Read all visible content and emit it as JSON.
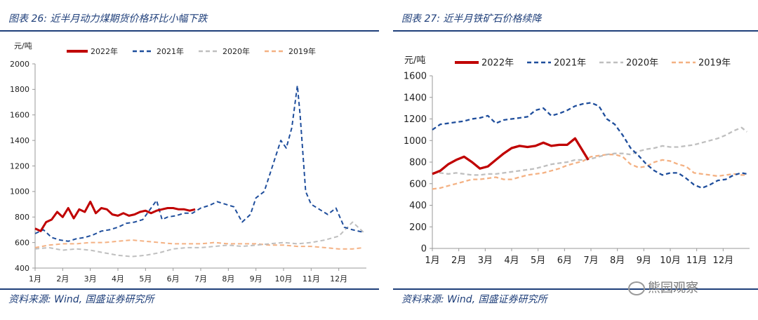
{
  "left": {
    "title": "图表 26:  近半月动力煤期货价格环比小幅下跌",
    "source": "资料来源:  Wind, 国盛证券研究所"
  },
  "right": {
    "title": "图表 27:  近半月铁矿石价格续降",
    "source": "资料来源:  Wind, 国盛证券研究所",
    "watermark": "熊园观察"
  },
  "colors": {
    "2022年": "#c00000",
    "2021年": "#1f4e9c",
    "2020年": "#bfbfbf",
    "2019年": "#f4b183",
    "accent": "#1f3f7a"
  },
  "chart_data": [
    {
      "type": "line",
      "ylabel": "元/吨",
      "ylim": [
        400,
        2000
      ],
      "yticks": [
        400,
        600,
        800,
        1000,
        1200,
        1400,
        1600,
        1800,
        2000
      ],
      "xticks": [
        "1月",
        "2月",
        "3月",
        "4月",
        "5月",
        "6月",
        "7月",
        "8月",
        "9月",
        "10月",
        "11月",
        "12月"
      ],
      "xlim": [
        1,
        13
      ],
      "legend_position": "top",
      "series": [
        {
          "name": "2022年",
          "style": "solid",
          "x": [
            1,
            1.2,
            1.4,
            1.6,
            1.8,
            2,
            2.2,
            2.4,
            2.6,
            2.8,
            3,
            3.2,
            3.4,
            3.6,
            3.8,
            4,
            4.2,
            4.4,
            4.6,
            4.8,
            5,
            5.2,
            5.4,
            5.6,
            5.8,
            6,
            6.2,
            6.4,
            6.6,
            6.8
          ],
          "y": [
            710,
            690,
            760,
            780,
            840,
            800,
            870,
            790,
            860,
            840,
            920,
            830,
            870,
            860,
            820,
            810,
            830,
            810,
            820,
            840,
            850,
            830,
            850,
            860,
            870,
            870,
            860,
            860,
            850,
            860
          ]
        },
        {
          "name": "2021年",
          "style": "dashed",
          "x": [
            1,
            1.3,
            1.6,
            1.9,
            2.2,
            2.5,
            2.8,
            3.1,
            3.4,
            3.7,
            4,
            4.3,
            4.6,
            4.9,
            5.2,
            5.4,
            5.6,
            5.8,
            6.1,
            6.4,
            6.7,
            7,
            7.3,
            7.6,
            7.9,
            8.2,
            8.5,
            8.8,
            9,
            9.3,
            9.6,
            9.9,
            10.1,
            10.3,
            10.5,
            10.6,
            10.8,
            11,
            11.3,
            11.6,
            11.9,
            12.2,
            12.5,
            12.9
          ],
          "y": [
            670,
            700,
            640,
            620,
            610,
            630,
            640,
            660,
            690,
            700,
            720,
            750,
            760,
            780,
            870,
            930,
            780,
            800,
            810,
            830,
            830,
            870,
            890,
            920,
            900,
            880,
            760,
            820,
            950,
            1000,
            1200,
            1400,
            1340,
            1500,
            1830,
            1600,
            1000,
            900,
            860,
            820,
            870,
            720,
            700,
            680
          ]
        },
        {
          "name": "2020年",
          "style": "dashed",
          "x": [
            1,
            1.5,
            2,
            2.5,
            3,
            3.5,
            4,
            4.5,
            5,
            5.5,
            6,
            6.5,
            7,
            7.5,
            8,
            8.5,
            9,
            9.5,
            10,
            10.5,
            11,
            11.5,
            12,
            12.5,
            12.9
          ],
          "y": [
            550,
            560,
            540,
            550,
            540,
            520,
            500,
            490,
            500,
            520,
            550,
            560,
            560,
            570,
            580,
            570,
            580,
            590,
            600,
            590,
            600,
            620,
            650,
            760,
            680
          ]
        },
        {
          "name": "2019年",
          "style": "dashed",
          "x": [
            1,
            1.5,
            2,
            2.5,
            3,
            3.5,
            4,
            4.5,
            5,
            5.5,
            6,
            6.5,
            7,
            7.5,
            8,
            8.5,
            9,
            9.5,
            10,
            10.5,
            11,
            11.5,
            12,
            12.5,
            12.9
          ],
          "y": [
            560,
            580,
            590,
            590,
            600,
            600,
            610,
            620,
            610,
            600,
            590,
            590,
            590,
            600,
            590,
            590,
            590,
            580,
            580,
            570,
            570,
            560,
            550,
            550,
            560
          ]
        }
      ]
    },
    {
      "type": "line",
      "ylabel": "元/吨",
      "ylim": [
        0,
        1600
      ],
      "yticks": [
        0,
        200,
        400,
        600,
        800,
        1000,
        1200,
        1400,
        1600
      ],
      "xticks": [
        "1月",
        "2月",
        "3月",
        "4月",
        "5月",
        "6月",
        "7月",
        "8月",
        "9月",
        "10月",
        "11月",
        "12月"
      ],
      "xlim": [
        1,
        13
      ],
      "legend_position": "top",
      "series": [
        {
          "name": "2022年",
          "style": "solid",
          "x": [
            1,
            1.3,
            1.6,
            1.9,
            2.2,
            2.5,
            2.8,
            3.1,
            3.4,
            3.7,
            4,
            4.3,
            4.6,
            4.9,
            5.2,
            5.5,
            5.8,
            6.1,
            6.4,
            6.7,
            6.9
          ],
          "y": [
            690,
            720,
            780,
            820,
            850,
            800,
            740,
            760,
            820,
            880,
            930,
            950,
            940,
            950,
            980,
            950,
            960,
            960,
            1020,
            900,
            820
          ]
        },
        {
          "name": "2021年",
          "style": "dashed",
          "x": [
            1,
            1.3,
            1.6,
            1.9,
            2.2,
            2.5,
            2.8,
            3.1,
            3.4,
            3.7,
            4,
            4.3,
            4.6,
            4.9,
            5.2,
            5.5,
            5.8,
            6.1,
            6.4,
            6.7,
            7,
            7.3,
            7.6,
            7.9,
            8.2,
            8.5,
            8.8,
            9.1,
            9.4,
            9.7,
            10,
            10.3,
            10.6,
            10.9,
            11.2,
            11.5,
            11.8,
            12.1,
            12.4,
            12.7,
            12.9
          ],
          "y": [
            1100,
            1150,
            1160,
            1170,
            1180,
            1200,
            1210,
            1230,
            1160,
            1190,
            1200,
            1210,
            1220,
            1280,
            1300,
            1230,
            1250,
            1280,
            1320,
            1340,
            1350,
            1320,
            1200,
            1150,
            1050,
            930,
            860,
            780,
            720,
            680,
            700,
            700,
            650,
            590,
            560,
            590,
            630,
            640,
            680,
            700,
            690
          ]
        },
        {
          "name": "2020年",
          "style": "dashed",
          "x": [
            1,
            1.3,
            1.6,
            1.9,
            2.2,
            2.5,
            2.8,
            3.1,
            3.4,
            3.7,
            4,
            4.3,
            4.6,
            4.9,
            5.2,
            5.5,
            5.8,
            6.1,
            6.4,
            6.7,
            7,
            7.3,
            7.6,
            7.9,
            8.2,
            8.5,
            8.8,
            9.1,
            9.4,
            9.7,
            10,
            10.3,
            10.6,
            10.9,
            11.2,
            11.5,
            11.8,
            12.1,
            12.4,
            12.7,
            12.9
          ],
          "y": [
            700,
            700,
            690,
            700,
            690,
            680,
            680,
            690,
            690,
            700,
            710,
            720,
            730,
            740,
            760,
            780,
            790,
            800,
            820,
            820,
            830,
            850,
            870,
            880,
            880,
            870,
            900,
            920,
            930,
            950,
            940,
            940,
            950,
            960,
            980,
            1000,
            1020,
            1050,
            1090,
            1120,
            1080
          ]
        },
        {
          "name": "2019年",
          "style": "dashed",
          "x": [
            1,
            1.3,
            1.6,
            1.9,
            2.2,
            2.5,
            2.8,
            3.1,
            3.4,
            3.7,
            4,
            4.3,
            4.6,
            4.9,
            5.2,
            5.5,
            5.8,
            6.1,
            6.4,
            6.7,
            7,
            7.3,
            7.6,
            7.9,
            8.2,
            8.5,
            8.8,
            9.1,
            9.4,
            9.7,
            10,
            10.3,
            10.6,
            10.9,
            11.2,
            11.5,
            11.8,
            12.1,
            12.4,
            12.7,
            12.9
          ],
          "y": [
            550,
            560,
            580,
            600,
            620,
            640,
            640,
            650,
            660,
            640,
            640,
            660,
            680,
            690,
            700,
            720,
            740,
            770,
            790,
            810,
            850,
            860,
            870,
            870,
            850,
            780,
            750,
            760,
            800,
            820,
            810,
            780,
            760,
            700,
            690,
            680,
            670,
            680,
            690,
            680,
            680
          ]
        }
      ]
    }
  ]
}
